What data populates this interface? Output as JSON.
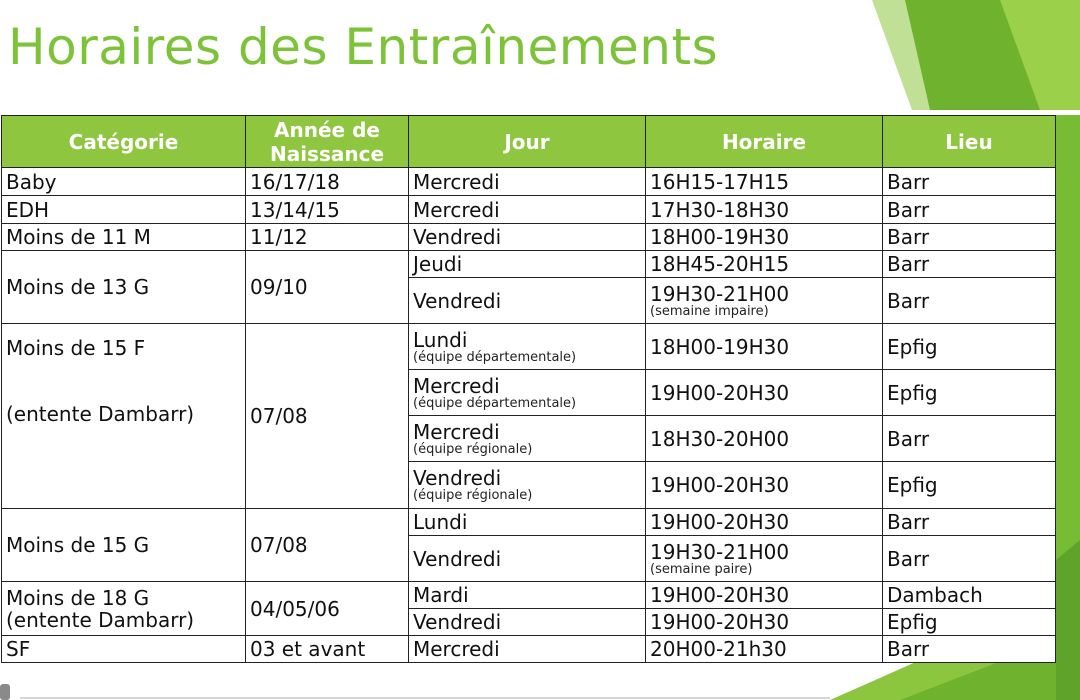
{
  "title": "Horaires des Entraînements",
  "colors": {
    "accent": "#7dc33a",
    "header_bg": "#8ec63f"
  },
  "headers": {
    "categorie": "Catégorie",
    "annee_line1": "Année de",
    "annee_line2": "Naissance",
    "jour": "Jour",
    "horaire": "Horaire",
    "lieu": "Lieu"
  },
  "rows": {
    "baby": {
      "cat": "Baby",
      "annee": "16/17/18",
      "jour": "Mercredi",
      "horaire": "16H15-17H15",
      "lieu": "Barr"
    },
    "edh": {
      "cat": "EDH",
      "annee": "13/14/15",
      "jour": "Mercredi",
      "horaire": "17H30-18H30",
      "lieu": "Barr"
    },
    "m11": {
      "cat": "Moins de 11 M",
      "annee": "11/12",
      "jour": "Vendredi",
      "horaire": "18H00-19H30",
      "lieu": "Barr"
    },
    "m13": {
      "cat": "Moins de 13 G",
      "annee": "09/10",
      "sessions": [
        {
          "jour": "Jeudi",
          "horaire": "18H45-20H15",
          "lieu": "Barr"
        },
        {
          "jour": "Vendredi",
          "horaire": "19H30-21H00",
          "horaire_note": "(semaine impaire)",
          "lieu": "Barr"
        }
      ]
    },
    "m15f": {
      "cat_line1": "Moins de 15 F",
      "cat_line2": "(entente Dambarr)",
      "annee": "07/08",
      "sessions": [
        {
          "jour": "Lundi",
          "jour_note": "(équipe départementale)",
          "horaire": "18H00-19H30",
          "lieu": "Epfig"
        },
        {
          "jour": "Mercredi",
          "jour_note": "(équipe départementale)",
          "horaire": "19H00-20H30",
          "lieu": "Epfig"
        },
        {
          "jour": "Mercredi",
          "jour_note": "(équipe régionale)",
          "horaire": "18H30-20H00",
          "lieu": "Barr"
        },
        {
          "jour": "Vendredi",
          "jour_note": "(équipe régionale)",
          "horaire": "19H00-20H30",
          "lieu": "Epfig"
        }
      ]
    },
    "m15g": {
      "cat": "Moins de 15 G",
      "annee": "07/08",
      "sessions": [
        {
          "jour": "Lundi",
          "horaire": "19H00-20H30",
          "lieu": "Barr"
        },
        {
          "jour": "Vendredi",
          "horaire": "19H30-21H00",
          "horaire_note": "(semaine paire)",
          "lieu": "Barr"
        }
      ]
    },
    "m18": {
      "cat_line1": "Moins de 18 G",
      "cat_line2": "(entente Dambarr)",
      "annee": "04/05/06",
      "sessions": [
        {
          "jour": "Mardi",
          "horaire": "19H00-20H30",
          "lieu": "Dambach"
        },
        {
          "jour": "Vendredi",
          "horaire": "19H00-20H30",
          "lieu": "Epfig"
        }
      ]
    },
    "sf": {
      "cat": "SF",
      "annee": "03 et avant",
      "jour": "Mercredi",
      "horaire": "20H00-21h30",
      "lieu": "Barr"
    }
  }
}
